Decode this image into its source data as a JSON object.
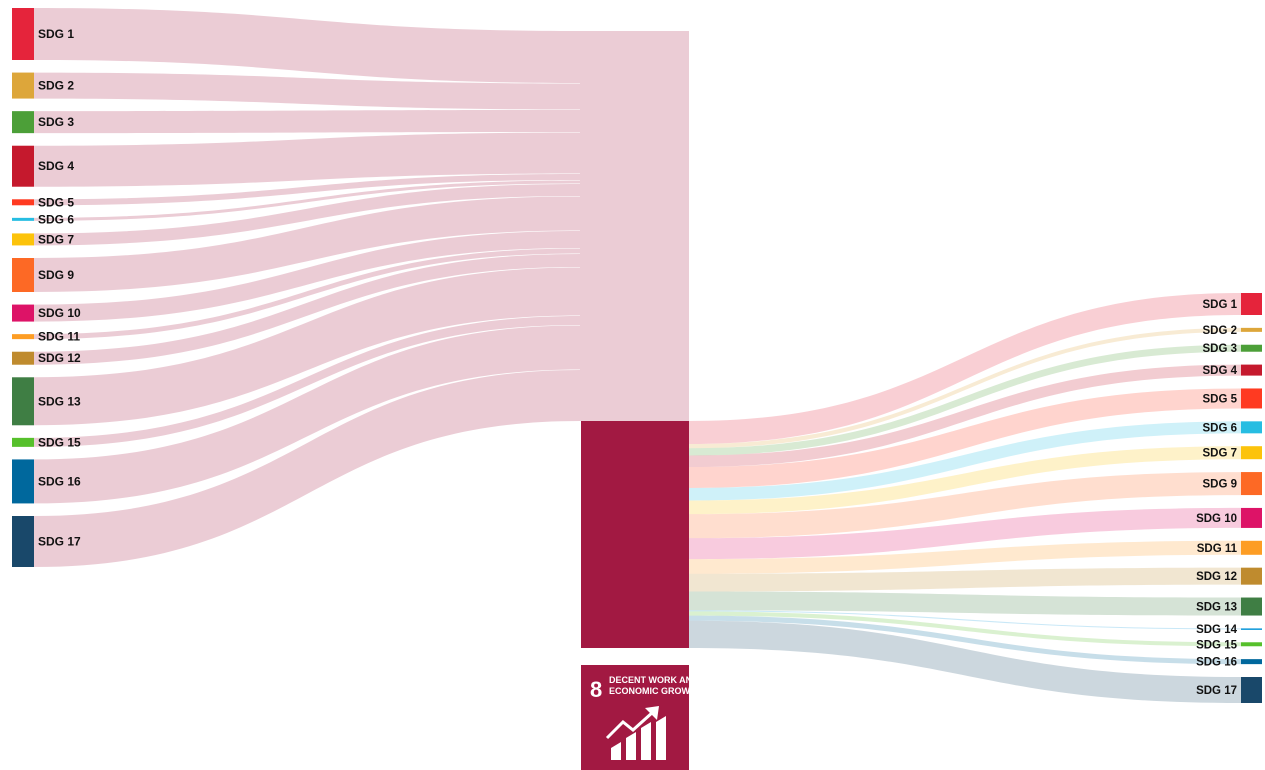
{
  "diagram": {
    "central_node": {
      "color": "#A21942",
      "tile": {
        "number": "8",
        "line1": "DECENT WORK AND",
        "line2": "ECONOMIC GROWTH",
        "icon": "growth-chart-icon"
      }
    },
    "left_nodes": [
      {
        "label": "SDG 1",
        "color": "#E5243B",
        "flow": 52
      },
      {
        "label": "SDG 2",
        "color": "#DDA63A",
        "flow": 26
      },
      {
        "label": "SDG 3",
        "color": "#4C9F38",
        "flow": 22
      },
      {
        "label": "SDG 4",
        "color": "#C5192D",
        "flow": 41
      },
      {
        "label": "SDG 5",
        "color": "#FF3A21",
        "flow": 6
      },
      {
        "label": "SDG 6",
        "color": "#26BDE2",
        "flow": 3
      },
      {
        "label": "SDG 7",
        "color": "#FCC30B",
        "flow": 12
      },
      {
        "label": "SDG 9",
        "color": "#FD6925",
        "flow": 34
      },
      {
        "label": "SDG 10",
        "color": "#DD1367",
        "flow": 17
      },
      {
        "label": "SDG 11",
        "color": "#FD9D24",
        "flow": 5
      },
      {
        "label": "SDG 12",
        "color": "#BF8B2E",
        "flow": 13
      },
      {
        "label": "SDG 13",
        "color": "#3F7E44",
        "flow": 48
      },
      {
        "label": "SDG 15",
        "color": "#56C02B",
        "flow": 9
      },
      {
        "label": "SDG 16",
        "color": "#00689D",
        "flow": 44
      },
      {
        "label": "SDG 17",
        "color": "#19486A",
        "flow": 51
      }
    ],
    "right_nodes": [
      {
        "label": "SDG 1",
        "color": "#E5243B",
        "flow": 22
      },
      {
        "label": "SDG 2",
        "color": "#DDA63A",
        "flow": 4
      },
      {
        "label": "SDG 3",
        "color": "#4C9F38",
        "flow": 7
      },
      {
        "label": "SDG 4",
        "color": "#C5192D",
        "flow": 11
      },
      {
        "label": "SDG 5",
        "color": "#FF3A21",
        "flow": 20
      },
      {
        "label": "SDG 6",
        "color": "#26BDE2",
        "flow": 12
      },
      {
        "label": "SDG 7",
        "color": "#FCC30B",
        "flow": 13
      },
      {
        "label": "SDG 9",
        "color": "#FD6925",
        "flow": 23
      },
      {
        "label": "SDG 10",
        "color": "#DD1367",
        "flow": 20
      },
      {
        "label": "SDG 11",
        "color": "#FD9D24",
        "flow": 14
      },
      {
        "label": "SDG 12",
        "color": "#BF8B2E",
        "flow": 17
      },
      {
        "label": "SDG 13",
        "color": "#3F7E44",
        "flow": 18
      },
      {
        "label": "SDG 14",
        "color": "#0A97D9",
        "flow": 1
      },
      {
        "label": "SDG 15",
        "color": "#56C02B",
        "flow": 4
      },
      {
        "label": "SDG 16",
        "color": "#00689D",
        "flow": 5
      },
      {
        "label": "SDG 17",
        "color": "#19486A",
        "flow": 26
      }
    ]
  }
}
